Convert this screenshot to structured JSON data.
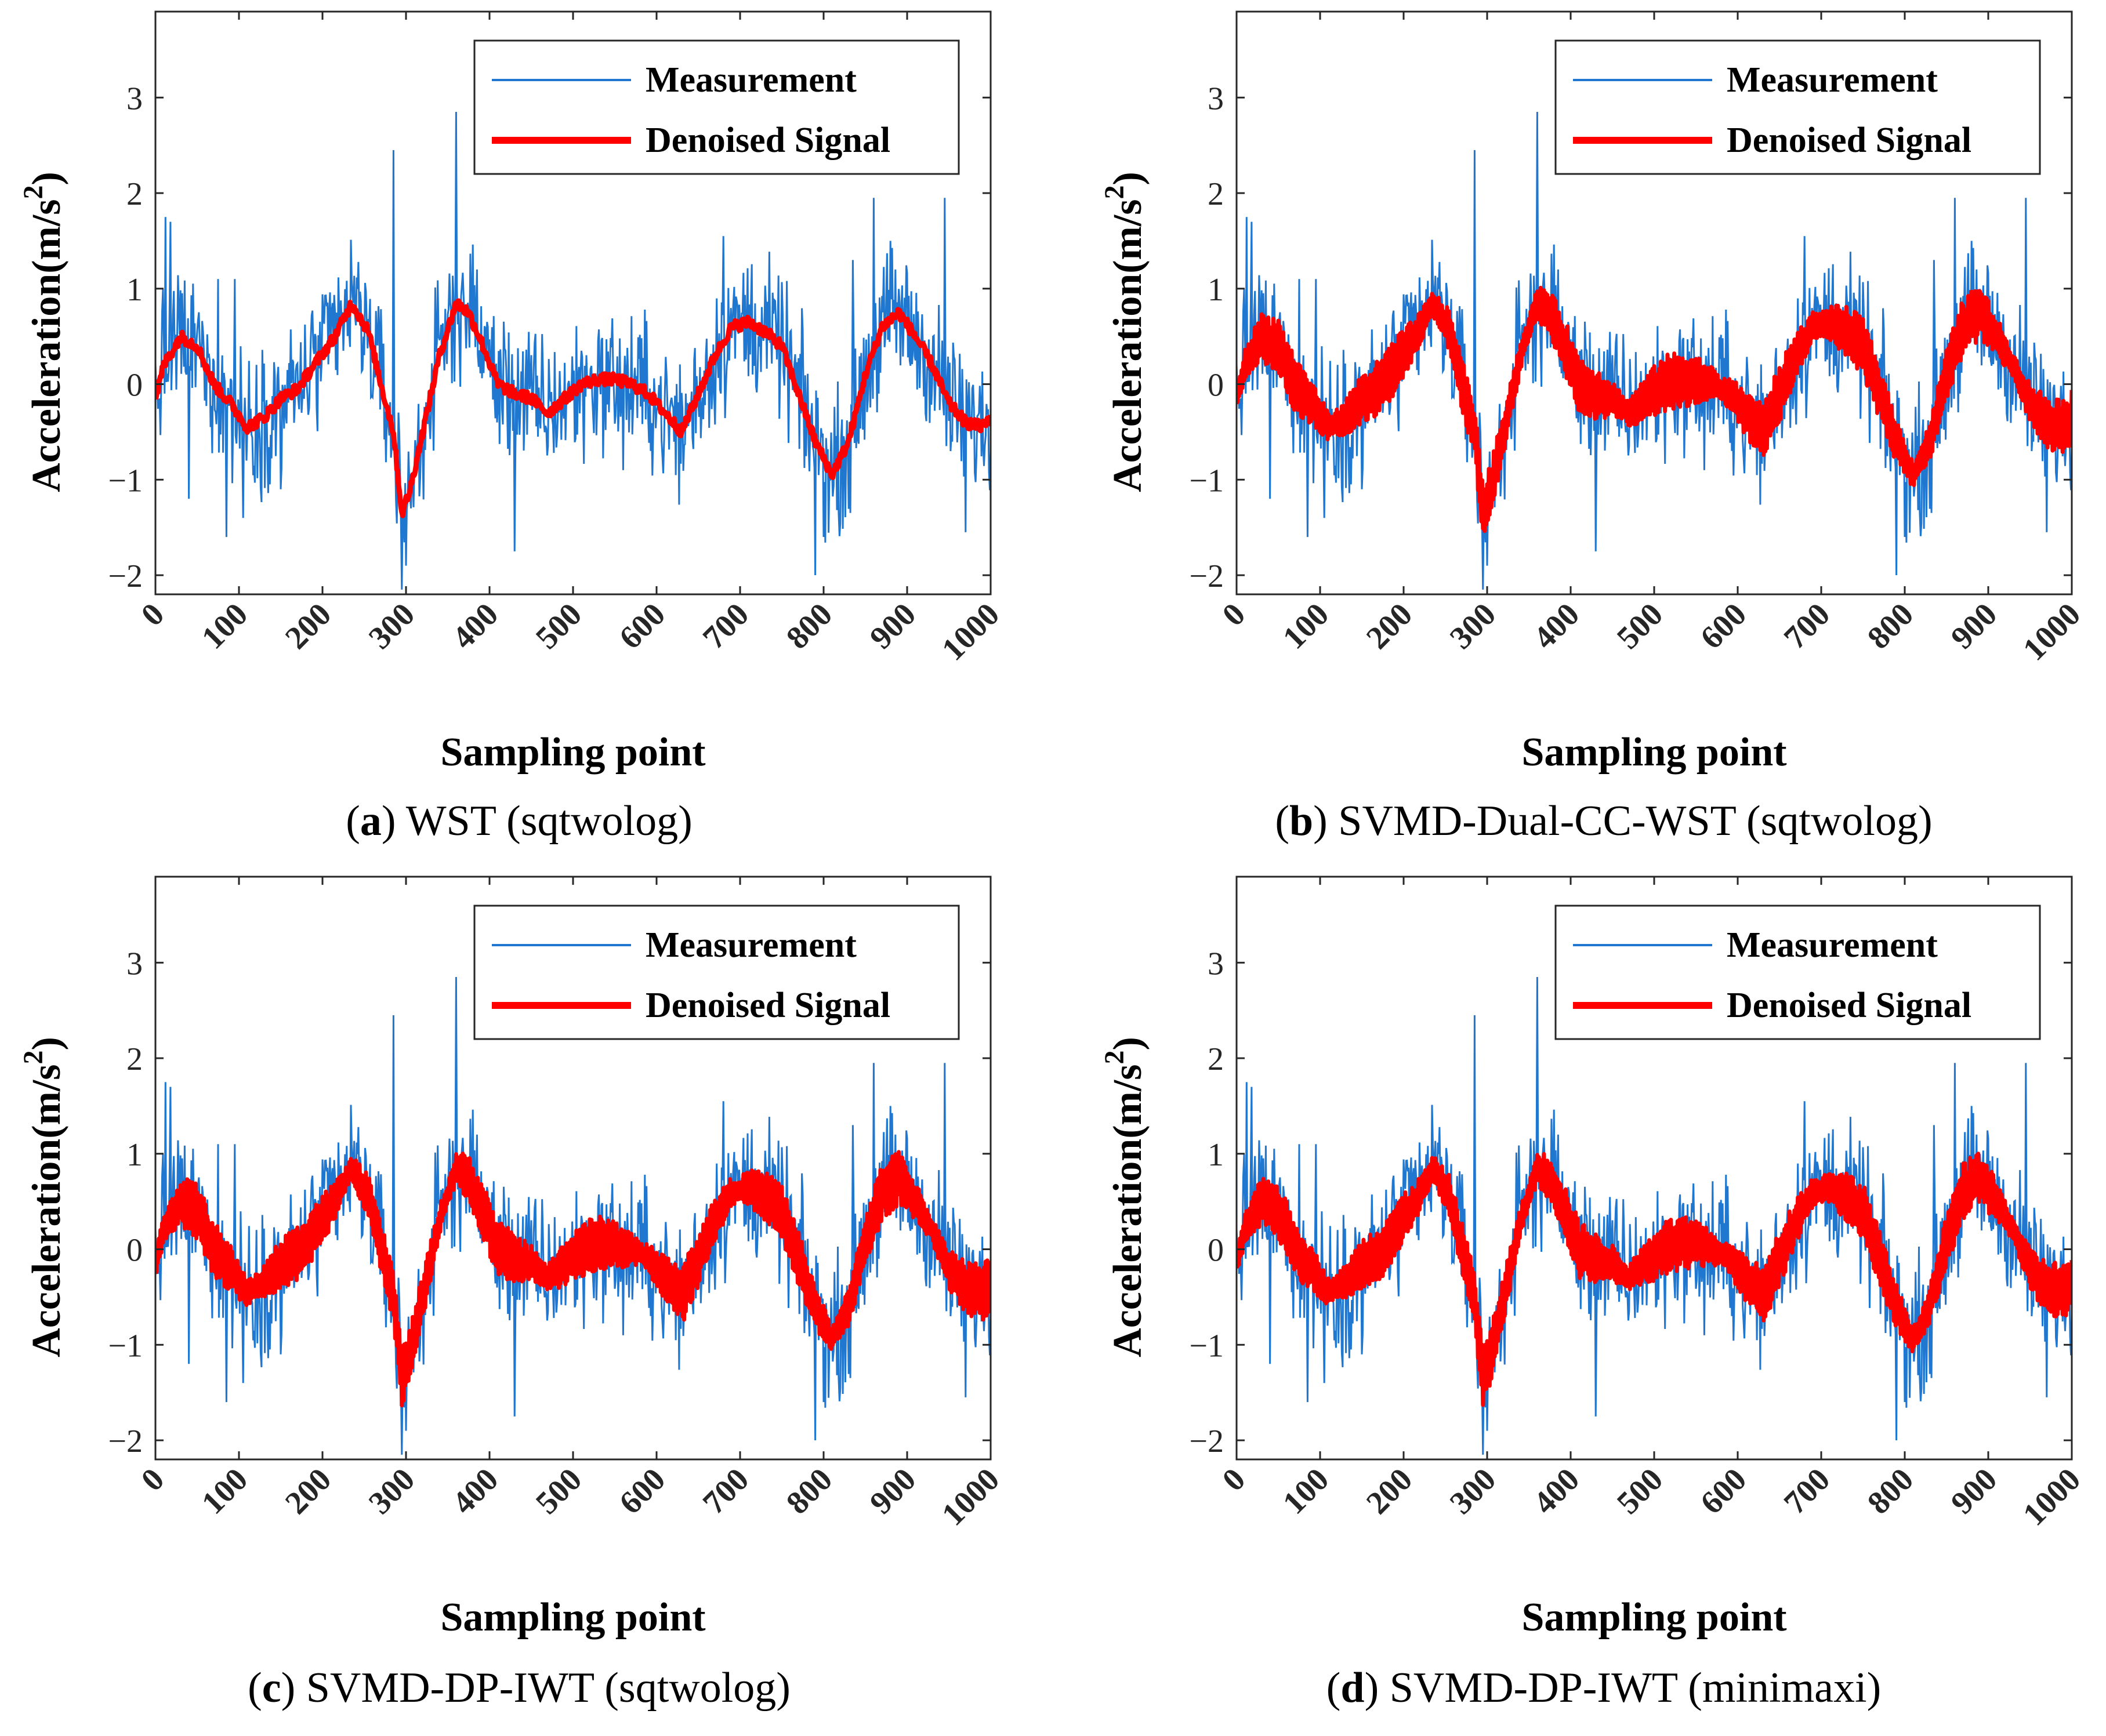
{
  "chart_data": [
    {
      "type": "line",
      "letter": "a",
      "caption": "WST (sqtwolog)",
      "xlabel": "Sampling point",
      "ylabel": "Acceleration(m/s",
      "ylabel_sup": "2",
      "ylabel_close": ")",
      "xlim": [
        0,
        1000
      ],
      "ylim": [
        -2.2,
        3.9
      ],
      "xticks": [
        "0",
        "100",
        "200",
        "300",
        "400",
        "500",
        "600",
        "700",
        "800",
        "900",
        "1000"
      ],
      "yticks": [
        "−2",
        "−1",
        "0",
        "1",
        "2",
        "3"
      ],
      "legend": [
        "Measurement",
        "Denoised Signal"
      ],
      "legend_position": "top-right",
      "denoise_style": "smooth",
      "series": [
        {
          "name": "Measurement",
          "color": "#1f77d0"
        },
        {
          "name": "Denoised Signal",
          "color": "#ff0000"
        }
      ]
    },
    {
      "type": "line",
      "letter": "b",
      "caption": "SVMD-Dual-CC-WST (sqtwolog)",
      "xlabel": "Sampling point",
      "ylabel": "Acceleration(m/s",
      "ylabel_sup": "2",
      "ylabel_close": ")",
      "xlim": [
        0,
        1000
      ],
      "ylim": [
        -2.2,
        3.9
      ],
      "xticks": [
        "0",
        "100",
        "200",
        "300",
        "400",
        "500",
        "600",
        "700",
        "800",
        "900",
        "1000"
      ],
      "yticks": [
        "−2",
        "−1",
        "0",
        "1",
        "2",
        "3"
      ],
      "legend": [
        "Measurement",
        "Denoised Signal"
      ],
      "legend_position": "top-right",
      "denoise_style": "thick",
      "series": [
        {
          "name": "Measurement",
          "color": "#1f77d0"
        },
        {
          "name": "Denoised Signal",
          "color": "#ff0000"
        }
      ]
    },
    {
      "type": "line",
      "letter": "c",
      "caption": "SVMD-DP-IWT (sqtwolog)",
      "xlabel": "Sampling point",
      "ylabel": "Acceleration(m/s",
      "ylabel_sup": "2",
      "ylabel_close": ")",
      "xlim": [
        0,
        1000
      ],
      "ylim": [
        -2.2,
        3.9
      ],
      "xticks": [
        "0",
        "100",
        "200",
        "300",
        "400",
        "500",
        "600",
        "700",
        "800",
        "900",
        "1000"
      ],
      "yticks": [
        "−2",
        "−1",
        "0",
        "1",
        "2",
        "3"
      ],
      "legend": [
        "Measurement",
        "Denoised Signal"
      ],
      "legend_position": "top-right",
      "denoise_style": "thick",
      "series": [
        {
          "name": "Measurement",
          "color": "#1f77d0"
        },
        {
          "name": "Denoised Signal",
          "color": "#ff0000"
        }
      ]
    },
    {
      "type": "line",
      "letter": "d",
      "caption": "SVMD-DP-IWT (minimaxi)",
      "xlabel": "Sampling point",
      "ylabel": "Acceleration(m/s",
      "ylabel_sup": "2",
      "ylabel_close": ")",
      "xlim": [
        0,
        1000
      ],
      "ylim": [
        -2.2,
        3.9
      ],
      "xticks": [
        "0",
        "100",
        "200",
        "300",
        "400",
        "500",
        "600",
        "700",
        "800",
        "900",
        "1000"
      ],
      "yticks": [
        "−2",
        "−1",
        "0",
        "1",
        "2",
        "3"
      ],
      "legend": [
        "Measurement",
        "Denoised Signal"
      ],
      "legend_position": "top-right",
      "denoise_style": "thick",
      "series": [
        {
          "name": "Measurement",
          "color": "#1f77d0"
        },
        {
          "name": "Denoised Signal",
          "color": "#ff0000"
        }
      ]
    }
  ],
  "signal": {
    "trend_x": [
      0,
      10,
      30,
      50,
      70,
      90,
      110,
      130,
      150,
      170,
      190,
      215,
      235,
      255,
      270,
      285,
      295,
      305,
      320,
      340,
      360,
      375,
      390,
      410,
      430,
      450,
      470,
      490,
      510,
      530,
      550,
      570,
      590,
      610,
      630,
      650,
      670,
      690,
      710,
      730,
      750,
      770,
      790,
      810,
      830,
      850,
      870,
      890,
      910,
      930,
      950,
      970,
      990,
      1000
    ],
    "trend_y": [
      -0.15,
      0.2,
      0.5,
      0.4,
      0.0,
      -0.2,
      -0.45,
      -0.35,
      -0.15,
      -0.05,
      0.2,
      0.5,
      0.85,
      0.55,
      0.0,
      -0.5,
      -1.35,
      -1.1,
      -0.5,
      0.3,
      0.85,
      0.75,
      0.45,
      0.0,
      -0.1,
      -0.15,
      -0.3,
      -0.15,
      0.0,
      0.05,
      0.05,
      0.0,
      -0.1,
      -0.3,
      -0.5,
      -0.1,
      0.3,
      0.6,
      0.65,
      0.55,
      0.4,
      -0.1,
      -0.6,
      -0.95,
      -0.6,
      0.1,
      0.6,
      0.75,
      0.5,
      0.2,
      -0.2,
      -0.4,
      -0.45,
      -0.35
    ],
    "noise_amplitude": 0.45,
    "spikes": [
      [
        12,
        1.75
      ],
      [
        18,
        1.7
      ],
      [
        40,
        -1.2
      ],
      [
        75,
        1.1
      ],
      [
        85,
        -1.6
      ],
      [
        95,
        1.1
      ],
      [
        105,
        -1.4
      ],
      [
        150,
        -1.1
      ],
      [
        285,
        2.45
      ],
      [
        295,
        -2.15
      ],
      [
        300,
        -1.9
      ],
      [
        360,
        2.85
      ],
      [
        385,
        1.2
      ],
      [
        430,
        -1.75
      ],
      [
        560,
        -0.9
      ],
      [
        680,
        1.55
      ],
      [
        790,
        -2.0
      ],
      [
        800,
        -1.6
      ],
      [
        835,
        1.3
      ],
      [
        860,
        1.95
      ],
      [
        880,
        1.5
      ],
      [
        945,
        1.95
      ],
      [
        970,
        -1.55
      ]
    ]
  }
}
